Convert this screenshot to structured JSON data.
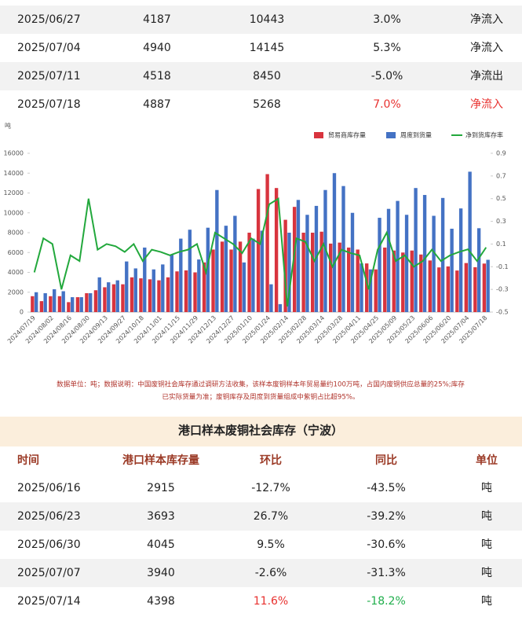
{
  "top_table": {
    "rows": [
      [
        "2025/06/27",
        "4187",
        "10443",
        "3.0%",
        "净流入"
      ],
      [
        "2025/07/04",
        "4940",
        "14145",
        "5.3%",
        "净流入"
      ],
      [
        "2025/07/11",
        "4518",
        "8450",
        "-5.0%",
        "净流出"
      ],
      [
        "2025/07/18",
        "4887",
        "5268",
        "7.0%",
        "净流入"
      ]
    ]
  },
  "chart_data": {
    "type": "bar",
    "y_unit": "吨",
    "categories": [
      "2024/07/19",
      null,
      "2024/08/02",
      null,
      "2024/08/16",
      null,
      "2024/08/30",
      null,
      "2024/09/13",
      null,
      "2024/09/27",
      null,
      "2024/10/18",
      null,
      "2024/11/01",
      null,
      "2024/11/15",
      null,
      "2024/11/29",
      null,
      "2024/12/13",
      null,
      "2024/12/27",
      null,
      "2025/01/10",
      null,
      "2025/01/24",
      null,
      "2025/02/14",
      null,
      "2025/02/28",
      null,
      "2025/03/14",
      null,
      "2025/03/28",
      null,
      "2025/04/11",
      null,
      "2025/04/25",
      null,
      "2025/05/09",
      null,
      "2025/05/23",
      null,
      "2025/06/06",
      null,
      "2025/06/20",
      null,
      "2025/07/04",
      null,
      "2025/07/18"
    ],
    "series": [
      {
        "name": "贸易商库存量",
        "color": "#d8343e",
        "values": [
          1600,
          1100,
          1600,
          1600,
          1000,
          1500,
          1900,
          2200,
          2500,
          2800,
          2800,
          3500,
          3400,
          3300,
          3200,
          3500,
          4100,
          4200,
          4000,
          5000,
          6300,
          7100,
          6300,
          7100,
          8000,
          12400,
          13900,
          12500,
          9300,
          10600,
          8000,
          8000,
          8100,
          6900,
          7000,
          6500,
          6300,
          4900,
          4300,
          6500,
          6200,
          6000,
          6200,
          5800,
          5200,
          4500,
          4600,
          4187,
          4940,
          4518,
          4887
        ]
      },
      {
        "name": "周度到货量",
        "color": "#4472c4",
        "values": [
          2000,
          1900,
          2300,
          2100,
          1500,
          1500,
          1900,
          3500,
          3000,
          3200,
          5100,
          4400,
          6500,
          4300,
          4800,
          5800,
          7400,
          8300,
          5300,
          8500,
          12300,
          8700,
          9700,
          5000,
          7400,
          8200,
          2800,
          800,
          8000,
          11300,
          9800,
          10700,
          12300,
          14000,
          12700,
          10000,
          4900,
          4300,
          9500,
          10400,
          11200,
          9800,
          12500,
          11800,
          9700,
          11500,
          8400,
          10443,
          14145,
          8450,
          5268
        ]
      },
      {
        "name": "净到货库存率",
        "color": "#22a83c",
        "axis": "y2",
        "values": [
          -0.15,
          0.15,
          0.1,
          -0.3,
          0.0,
          -0.05,
          0.5,
          0.05,
          0.1,
          0.08,
          0.03,
          0.1,
          -0.05,
          0.05,
          0.03,
          0.0,
          0.03,
          0.05,
          0.1,
          -0.15,
          0.2,
          0.15,
          0.1,
          0.02,
          0.15,
          0.1,
          0.45,
          0.5,
          -0.45,
          0.15,
          0.12,
          -0.05,
          0.1,
          -0.1,
          0.05,
          0.02,
          0.0,
          -0.3,
          0.05,
          0.2,
          -0.05,
          0.0,
          -0.1,
          -0.05,
          0.05,
          -0.05,
          0.0,
          0.03,
          0.053,
          -0.05,
          0.07
        ]
      }
    ],
    "ylim": [
      0,
      16000
    ],
    "yticks": [
      0,
      2000,
      4000,
      6000,
      8000,
      10000,
      12000,
      14000,
      16000
    ],
    "y2lim": [
      -0.5,
      0.9
    ],
    "y2ticks": [
      -0.5,
      -0.3,
      -0.1,
      0.1,
      0.3,
      0.5,
      0.7,
      0.9
    ],
    "legend": "top-right"
  },
  "note": [
    "数据单位：吨；数据说明：中国废铜社会库存通过调研方法收集，该样本废铜样本年贸易量约100万吨，占国内废铜供应总量的25%;库存",
    "已实际货量为准；废铜库存及周度到货量组成中紫铜占比超95%。"
  ],
  "bottom_table": {
    "title": "港口样本废铜社会库存（宁波）",
    "header": [
      "时间",
      "港口样本库存量",
      "环比",
      "同比",
      "单位"
    ],
    "rows": [
      [
        "2025/06/16",
        "2915",
        "-12.7%",
        "-43.5%",
        "吨"
      ],
      [
        "2025/06/23",
        "3693",
        "26.7%",
        "-39.2%",
        "吨"
      ],
      [
        "2025/06/30",
        "4045",
        "9.5%",
        "-30.6%",
        "吨"
      ],
      [
        "2025/07/07",
        "3940",
        "-2.6%",
        "-31.3%",
        "吨"
      ],
      [
        "2025/07/14",
        "4398",
        "11.6%",
        "-18.2%",
        "吨"
      ]
    ]
  }
}
